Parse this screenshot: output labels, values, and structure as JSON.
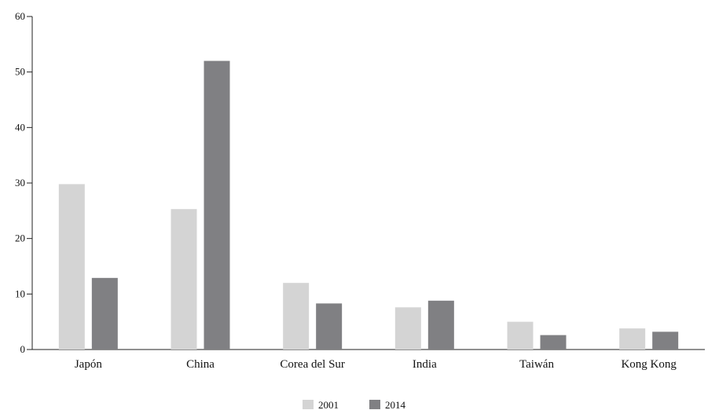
{
  "chart_data": {
    "type": "bar",
    "title": "",
    "xlabel": "",
    "ylabel": "",
    "categories": [
      "Japón",
      "China",
      "Corea del Sur",
      "India",
      "Taiwán",
      "Kong Kong"
    ],
    "series": [
      {
        "name": "2001",
        "values": [
          29.8,
          25.3,
          12.0,
          7.6,
          5.0,
          3.8
        ],
        "color": "#d4d4d4"
      },
      {
        "name": "2014",
        "values": [
          12.9,
          52.0,
          8.3,
          8.8,
          2.6,
          3.2
        ],
        "color": "#808083"
      }
    ],
    "ylim": [
      0,
      60
    ],
    "yticks": [
      0,
      10,
      20,
      30,
      40,
      50,
      60
    ],
    "grid": false,
    "legend_position": "bottom-center"
  }
}
